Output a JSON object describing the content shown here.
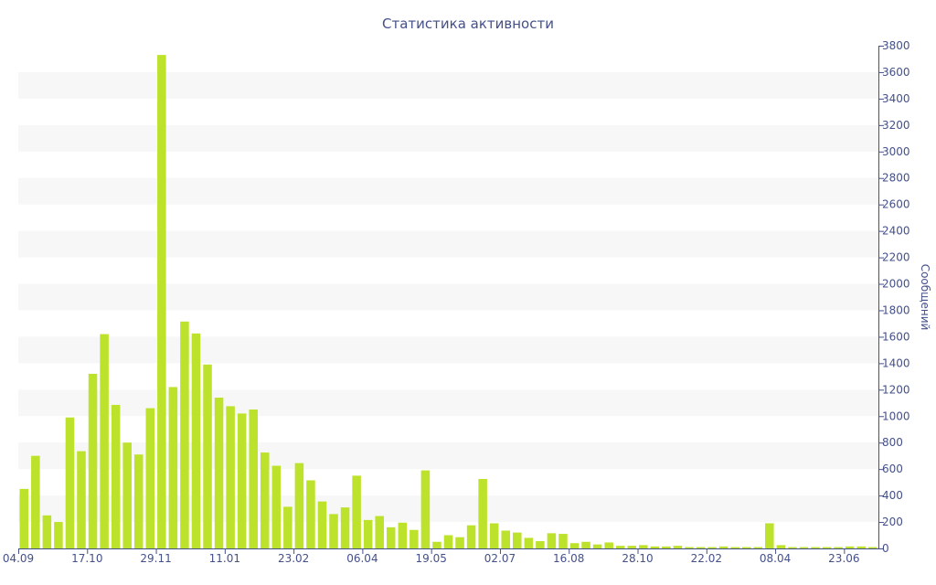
{
  "chart_data": {
    "type": "bar",
    "title": "Статистика активности",
    "ylabel": "Сообщений",
    "xlabel": "",
    "ylim": [
      0,
      3800
    ],
    "yticks": [
      0,
      200,
      400,
      600,
      800,
      1000,
      1200,
      1400,
      1600,
      1800,
      2000,
      2200,
      2400,
      2600,
      2800,
      3000,
      3200,
      3400,
      3600,
      3800
    ],
    "x_tick_labels": [
      {
        "label": "04.09",
        "index": 0
      },
      {
        "label": "17.10",
        "index": 6
      },
      {
        "label": "29.11",
        "index": 12
      },
      {
        "label": "11.01",
        "index": 18
      },
      {
        "label": "23.02",
        "index": 24
      },
      {
        "label": "06.04",
        "index": 30
      },
      {
        "label": "19.05",
        "index": 36
      },
      {
        "label": "02.07",
        "index": 42
      },
      {
        "label": "16.08",
        "index": 48
      },
      {
        "label": "28.10",
        "index": 54
      },
      {
        "label": "22.02",
        "index": 60
      },
      {
        "label": "08.04",
        "index": 66
      },
      {
        "label": "23.06",
        "index": 72
      }
    ],
    "values": [
      450,
      700,
      250,
      200,
      990,
      735,
      1320,
      1620,
      1085,
      800,
      710,
      1060,
      3730,
      1220,
      1715,
      1625,
      1390,
      1140,
      1075,
      1020,
      1050,
      725,
      625,
      315,
      645,
      515,
      355,
      260,
      310,
      550,
      215,
      245,
      160,
      195,
      140,
      590,
      50,
      100,
      85,
      175,
      525,
      190,
      135,
      120,
      80,
      55,
      115,
      110,
      40,
      50,
      30,
      45,
      20,
      20,
      25,
      15,
      15,
      20,
      10,
      10,
      10,
      15,
      10,
      10,
      10,
      190,
      25,
      10,
      10,
      10,
      10,
      10,
      15,
      15,
      10
    ],
    "bar_color": "#bde22b",
    "band_color": "#f7f7f7",
    "text_color": "#44508a",
    "axis_color": "#44508a",
    "grid": "alternating-bands",
    "y_axis_side": "right",
    "legend": "none"
  }
}
